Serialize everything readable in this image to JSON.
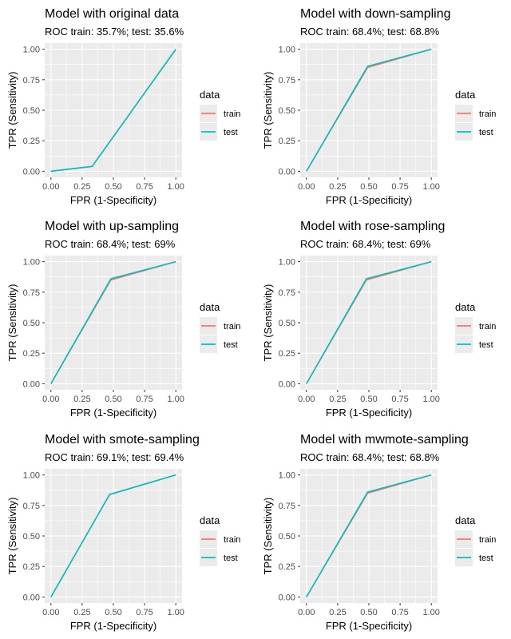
{
  "colors": {
    "train": "#F8766D",
    "test": "#00BFC4",
    "panel_bg": "#EBEBEB",
    "grid": "#FFFFFF",
    "tick_text": "#4D4D4D"
  },
  "legend": {
    "title": "data",
    "entries": [
      "train",
      "test"
    ]
  },
  "chart_data": [
    {
      "type": "line",
      "title": "Model with original data",
      "subtitle": "ROC train: 35.7%;  test: 35.6%",
      "xlabel": "FPR (1-Specificity)",
      "ylabel": "TPR (Sensitivity)",
      "xlim": [
        0,
        1
      ],
      "ylim": [
        0,
        1
      ],
      "xticks": [
        "0.00",
        "0.25",
        "0.50",
        "0.75",
        "1.00"
      ],
      "yticks": [
        "0.00",
        "0.25",
        "0.50",
        "0.75",
        "1.00"
      ],
      "series": [
        {
          "name": "train",
          "x": [
            0,
            0.33,
            1
          ],
          "y": [
            0,
            0.04,
            1
          ]
        },
        {
          "name": "test",
          "x": [
            0,
            0.33,
            1
          ],
          "y": [
            0,
            0.04,
            1
          ]
        }
      ]
    },
    {
      "type": "line",
      "title": "Model with down-sampling",
      "subtitle": "ROC train: 68.4%;  test: 68.8%",
      "xlabel": "FPR (1-Specificity)",
      "ylabel": "TPR (Sensitivity)",
      "xlim": [
        0,
        1
      ],
      "ylim": [
        0,
        1
      ],
      "xticks": [
        "0.00",
        "0.25",
        "0.50",
        "0.75",
        "1.00"
      ],
      "yticks": [
        "0.00",
        "0.25",
        "0.50",
        "0.75",
        "1.00"
      ],
      "series": [
        {
          "name": "train",
          "x": [
            0,
            0.49,
            1
          ],
          "y": [
            0,
            0.85,
            1
          ]
        },
        {
          "name": "test",
          "x": [
            0,
            0.49,
            1
          ],
          "y": [
            0,
            0.86,
            1
          ]
        }
      ]
    },
    {
      "type": "line",
      "title": "Model with up-sampling",
      "subtitle": "ROC train: 68.4%;  test: 69%",
      "xlabel": "FPR (1-Specificity)",
      "ylabel": "TPR (Sensitivity)",
      "xlim": [
        0,
        1
      ],
      "ylim": [
        0,
        1
      ],
      "xticks": [
        "0.00",
        "0.25",
        "0.50",
        "0.75",
        "1.00"
      ],
      "yticks": [
        "0.00",
        "0.25",
        "0.50",
        "0.75",
        "1.00"
      ],
      "series": [
        {
          "name": "train",
          "x": [
            0,
            0.48,
            1
          ],
          "y": [
            0,
            0.85,
            1
          ]
        },
        {
          "name": "test",
          "x": [
            0,
            0.48,
            1
          ],
          "y": [
            0,
            0.86,
            1
          ]
        }
      ]
    },
    {
      "type": "line",
      "title": "Model with rose-sampling",
      "subtitle": "ROC train: 68.4%;  test: 69%",
      "xlabel": "FPR (1-Specificity)",
      "ylabel": "TPR (Sensitivity)",
      "xlim": [
        0,
        1
      ],
      "ylim": [
        0,
        1
      ],
      "xticks": [
        "0.00",
        "0.25",
        "0.50",
        "0.75",
        "1.00"
      ],
      "yticks": [
        "0.00",
        "0.25",
        "0.50",
        "0.75",
        "1.00"
      ],
      "series": [
        {
          "name": "train",
          "x": [
            0,
            0.48,
            1
          ],
          "y": [
            0,
            0.85,
            1
          ]
        },
        {
          "name": "test",
          "x": [
            0,
            0.48,
            1
          ],
          "y": [
            0,
            0.86,
            1
          ]
        }
      ]
    },
    {
      "type": "line",
      "title": "Model with smote-sampling",
      "subtitle": "ROC train: 69.1%;  test: 69.4%",
      "xlabel": "FPR (1-Specificity)",
      "ylabel": "TPR (Sensitivity)",
      "xlim": [
        0,
        1
      ],
      "ylim": [
        0,
        1
      ],
      "xticks": [
        "0.00",
        "0.25",
        "0.50",
        "0.75",
        "1.00"
      ],
      "yticks": [
        "0.00",
        "0.25",
        "0.50",
        "0.75",
        "1.00"
      ],
      "series": [
        {
          "name": "train",
          "x": [
            0,
            0.47,
            1
          ],
          "y": [
            0,
            0.84,
            1
          ]
        },
        {
          "name": "test",
          "x": [
            0,
            0.47,
            1
          ],
          "y": [
            0,
            0.84,
            1
          ]
        }
      ]
    },
    {
      "type": "line",
      "title": "Model with mwmote-sampling",
      "subtitle": "ROC train: 68.4%;  test: 68.8%",
      "xlabel": "FPR (1-Specificity)",
      "ylabel": "TPR (Sensitivity)",
      "xlim": [
        0,
        1
      ],
      "ylim": [
        0,
        1
      ],
      "xticks": [
        "0.00",
        "0.25",
        "0.50",
        "0.75",
        "1.00"
      ],
      "yticks": [
        "0.00",
        "0.25",
        "0.50",
        "0.75",
        "1.00"
      ],
      "series": [
        {
          "name": "train",
          "x": [
            0,
            0.49,
            1
          ],
          "y": [
            0,
            0.85,
            1
          ]
        },
        {
          "name": "test",
          "x": [
            0,
            0.49,
            1
          ],
          "y": [
            0,
            0.86,
            1
          ]
        }
      ]
    }
  ]
}
